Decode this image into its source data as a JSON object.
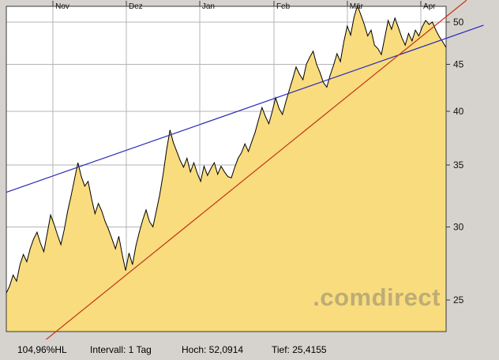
{
  "status": {
    "percent_hl": "104,96%HL",
    "interval": "Intervall: 1 Tag",
    "high": "Hoch: 52,0914",
    "low": "Tief: 25,4155"
  },
  "chart_data": {
    "type": "area",
    "watermark": ".comdirect",
    "interval": "1 Tag",
    "high": 52.0914,
    "low": 25.4155,
    "yscale": "log",
    "ylim": [
      23.1,
      52.0
    ],
    "yticks": [
      25,
      30,
      35,
      40,
      45,
      50
    ],
    "xticks": [
      {
        "label": "Nov",
        "day": 13.7
      },
      {
        "label": "Dez",
        "day": 35.2
      },
      {
        "label": "Jan",
        "day": 56.7
      },
      {
        "label": "Feb",
        "day": 78.5
      },
      {
        "label": "Mär",
        "day": 100.0
      },
      {
        "label": "Apr",
        "day": 121.6
      }
    ],
    "values": [
      25.42,
      25.9,
      26.6,
      26.2,
      27.3,
      28.0,
      27.5,
      28.4,
      29.1,
      29.6,
      28.8,
      28.2,
      29.5,
      30.9,
      30.2,
      29.4,
      28.7,
      29.8,
      31.2,
      32.4,
      33.8,
      35.2,
      34.0,
      33.2,
      33.6,
      32.2,
      31.0,
      31.8,
      31.2,
      30.4,
      29.8,
      29.1,
      28.4,
      29.3,
      28.0,
      26.9,
      28.1,
      27.3,
      28.6,
      29.6,
      30.5,
      31.3,
      30.4,
      30.0,
      31.2,
      32.5,
      34.2,
      36.3,
      38.2,
      37.0,
      36.2,
      35.4,
      34.8,
      35.6,
      34.4,
      35.2,
      34.3,
      33.6,
      34.9,
      34.1,
      34.7,
      35.2,
      34.2,
      34.9,
      34.4,
      34.0,
      33.9,
      34.8,
      35.6,
      36.1,
      36.9,
      36.2,
      37.1,
      38.0,
      39.2,
      40.4,
      39.5,
      38.8,
      40.0,
      41.4,
      40.3,
      39.7,
      41.0,
      42.2,
      43.4,
      44.7,
      43.9,
      43.3,
      45.0,
      45.8,
      46.5,
      45.0,
      44.1,
      43.0,
      42.5,
      43.8,
      44.9,
      46.2,
      45.3,
      47.6,
      49.5,
      48.4,
      50.6,
      52.09,
      50.9,
      49.7,
      48.3,
      49.0,
      47.2,
      46.8,
      46.1,
      48.1,
      50.2,
      49.1,
      50.5,
      49.3,
      48.1,
      47.2,
      48.6,
      47.7,
      49.0,
      48.3,
      49.4,
      50.2,
      49.7,
      50.0,
      49.0,
      48.2,
      47.6,
      46.9
    ],
    "trendlines": [
      {
        "name": "support-trendline-blue",
        "color": "#2a2ab8",
        "from": {
          "day": 0,
          "price": 32.7
        },
        "to": {
          "day": 140,
          "price": 49.6
        }
      },
      {
        "name": "uptrend-line-red",
        "color": "#c23418",
        "from": {
          "day": 0,
          "price": 20.9
        },
        "to": {
          "day": 135,
          "price": 52.8
        }
      }
    ],
    "colors": {
      "area_fill": "#F8DC7E",
      "line": "#000000",
      "grid": "#b4b4b4",
      "border": "#3a3a3a",
      "plot_bg": "#ffffff",
      "label": "#111111"
    }
  }
}
